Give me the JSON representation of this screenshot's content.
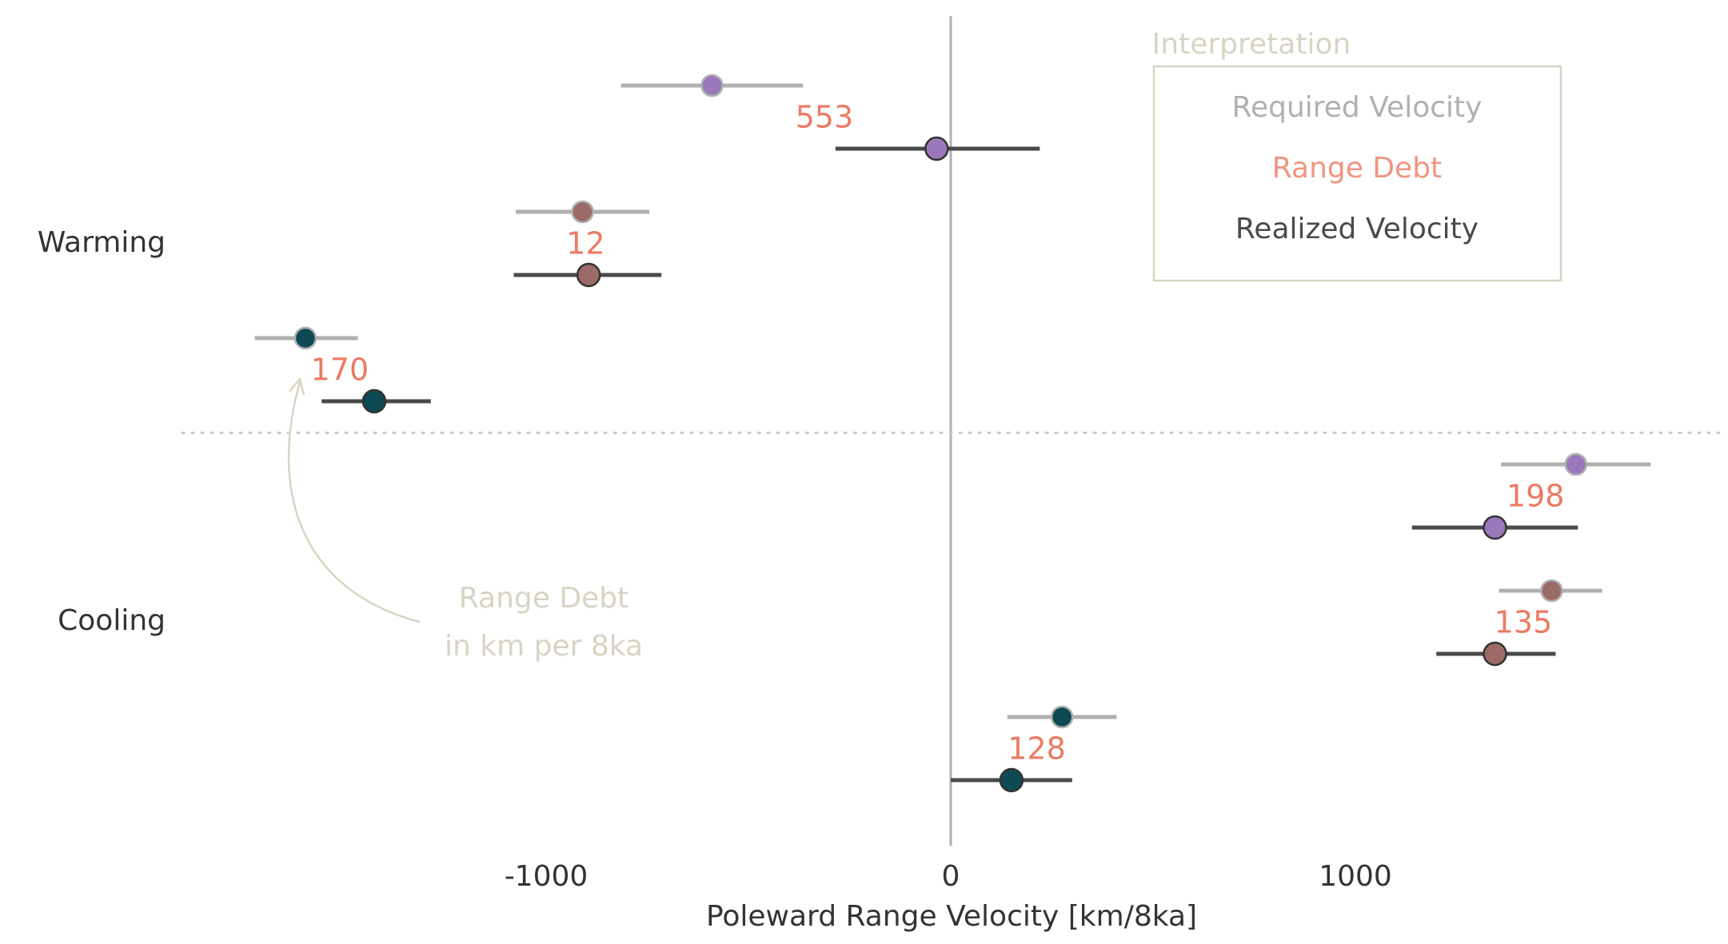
{
  "chart_data": {
    "type": "dot-interval",
    "xlabel": "Poleward Range Velocity [km/8ka]",
    "x_ticks": [
      -1000,
      0,
      1000
    ],
    "xlim": [
      -1900,
      1900
    ],
    "groups": [
      "Warming",
      "Cooling"
    ],
    "legend": {
      "title": "Interpretation",
      "entries": [
        "Required Velocity",
        "Range Debt",
        "Realized Velocity"
      ],
      "placement": "top-right"
    },
    "annotation": {
      "text_line1": "Range Debt",
      "text_line2": "in km per 8ka"
    },
    "colors": {
      "required_line": "#b0b0b0",
      "realized_line": "#4a4a4a",
      "debt_label": "#ec7a63",
      "legend_debt": "#f0957f",
      "legend_title": "#d8d4c4",
      "annotation": "#d8d4c4",
      "axis": "#b0b0b0",
      "separator": "#c8c8c8"
    },
    "series": [
      {
        "group": "Warming",
        "color": "#9a78bb",
        "required": {
          "value": -590,
          "low": -815,
          "high": -365
        },
        "realized": {
          "value": -35,
          "low": -285,
          "high": 220
        },
        "debt_label": "553"
      },
      {
        "group": "Warming",
        "color": "#9c6b67",
        "required": {
          "value": -910,
          "low": -1075,
          "high": -745
        },
        "realized": {
          "value": -895,
          "low": -1080,
          "high": -715
        },
        "debt_label": "12"
      },
      {
        "group": "Warming",
        "color": "#0e4a53",
        "required": {
          "value": -1595,
          "low": -1720,
          "high": -1465
        },
        "realized": {
          "value": -1425,
          "low": -1555,
          "high": -1285
        },
        "debt_label": "170"
      },
      {
        "group": "Cooling",
        "color": "#9a78bb",
        "required": {
          "value": 1545,
          "low": 1360,
          "high": 1730
        },
        "realized": {
          "value": 1345,
          "low": 1140,
          "high": 1550
        },
        "debt_label": "198"
      },
      {
        "group": "Cooling",
        "color": "#9c6b67",
        "required": {
          "value": 1485,
          "low": 1355,
          "high": 1610
        },
        "realized": {
          "value": 1345,
          "low": 1200,
          "high": 1495
        },
        "debt_label": "135"
      },
      {
        "group": "Cooling",
        "color": "#0e4a53",
        "required": {
          "value": 275,
          "low": 140,
          "high": 410
        },
        "realized": {
          "value": 150,
          "low": 0,
          "high": 300
        },
        "debt_label": "128"
      }
    ]
  }
}
